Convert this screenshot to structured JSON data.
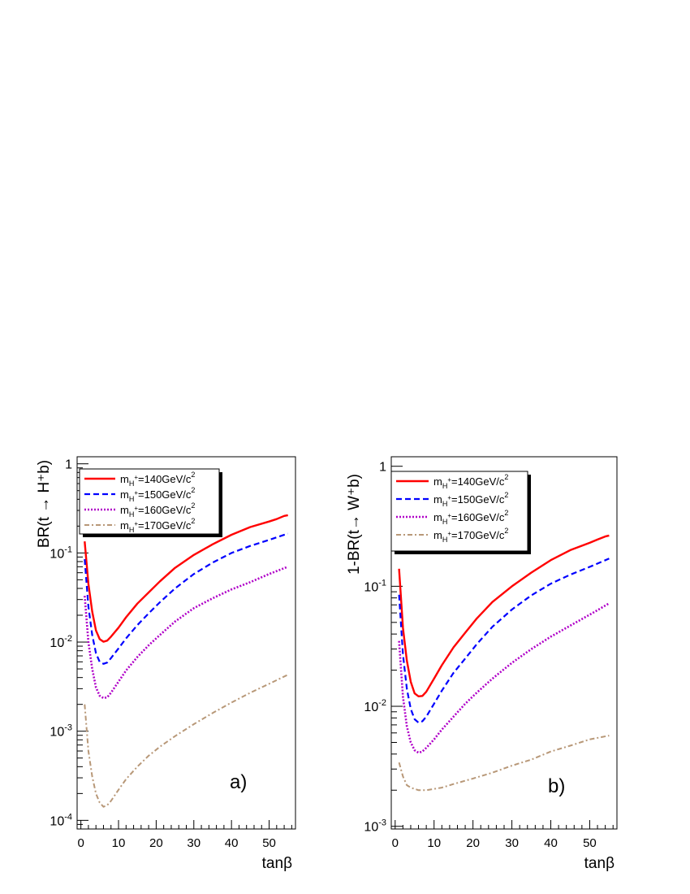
{
  "chart_data": [
    {
      "type": "line",
      "panel_label": "a)",
      "xlabel": "tanβ",
      "ylabel": "BR(t → H⁺b)",
      "xlim": [
        -1,
        57
      ],
      "ylim": [
        8e-05,
        1.2
      ],
      "yscale": "log",
      "grid": false,
      "legend_position": "top-left",
      "x_ticks": [
        0,
        10,
        20,
        30,
        40,
        50
      ],
      "y_ticks": [
        {
          "value": 0.0001,
          "base": "10",
          "exp": "-4"
        },
        {
          "value": 0.001,
          "base": "10",
          "exp": "-3"
        },
        {
          "value": 0.01,
          "base": "10",
          "exp": "-2"
        },
        {
          "value": 0.1,
          "base": "10",
          "exp": "-1"
        },
        {
          "value": 1,
          "base": "1",
          "exp": ""
        }
      ],
      "series": [
        {
          "name": "m_H+=140GeV/c^2",
          "legend": {
            "m": "m",
            "sub": "H",
            "sup": "+",
            "rest": "=140GeV/c",
            "sq": "2"
          },
          "color": "#ff0000",
          "dash": "",
          "width": 2.4,
          "x": [
            1,
            2,
            3,
            4,
            5,
            6,
            7,
            8,
            10,
            12,
            15,
            18,
            21,
            25,
            30,
            35,
            40,
            45,
            50,
            52,
            54,
            55
          ],
          "y": [
            0.135,
            0.045,
            0.022,
            0.0135,
            0.0108,
            0.0101,
            0.0104,
            0.0115,
            0.0145,
            0.019,
            0.027,
            0.036,
            0.048,
            0.068,
            0.095,
            0.125,
            0.16,
            0.195,
            0.225,
            0.24,
            0.26,
            0.265
          ]
        },
        {
          "name": "m_H+=150GeV/c^2",
          "legend": {
            "m": "m",
            "sub": "H",
            "sup": "+",
            "rest": "=150GeV/c",
            "sq": "2"
          },
          "color": "#0000ff",
          "dash": "7,4",
          "width": 2.2,
          "x": [
            1,
            2,
            3,
            4,
            5,
            6,
            7,
            8,
            10,
            12,
            15,
            18,
            21,
            25,
            30,
            35,
            40,
            45,
            50,
            55
          ],
          "y": [
            0.085,
            0.025,
            0.012,
            0.0075,
            0.006,
            0.0057,
            0.0059,
            0.0066,
            0.0085,
            0.011,
            0.0155,
            0.021,
            0.028,
            0.04,
            0.058,
            0.078,
            0.1,
            0.12,
            0.14,
            0.165
          ]
        },
        {
          "name": "m_H+=160GeV/c^2",
          "legend": {
            "m": "m",
            "sub": "H",
            "sup": "+",
            "rest": "=160GeV/c",
            "sq": "2"
          },
          "color": "#b000c8",
          "dash": "2,2",
          "width": 2.6,
          "x": [
            1,
            2,
            3,
            4,
            5,
            6,
            7,
            8,
            10,
            12,
            15,
            18,
            21,
            25,
            30,
            35,
            40,
            45,
            50,
            55
          ],
          "y": [
            0.033,
            0.01,
            0.005,
            0.0031,
            0.0025,
            0.00235,
            0.0024,
            0.0027,
            0.0036,
            0.0048,
            0.0068,
            0.0092,
            0.012,
            0.017,
            0.024,
            0.031,
            0.039,
            0.047,
            0.058,
            0.07
          ]
        },
        {
          "name": "m_H+=170GeV/c^2",
          "legend": {
            "m": "m",
            "sub": "H",
            "sup": "+",
            "rest": "=170GeV/c",
            "sq": "2"
          },
          "color": "#b89878",
          "dash": "6,3,2,3",
          "width": 2.0,
          "x": [
            1,
            2,
            3,
            4,
            5,
            6,
            7,
            8,
            10,
            12,
            15,
            18,
            21,
            25,
            30,
            35,
            40,
            45,
            50,
            55
          ],
          "y": [
            0.002,
            0.0006,
            0.00031,
            0.0002,
            0.000158,
            0.000142,
            0.000148,
            0.000165,
            0.00022,
            0.00029,
            0.0004,
            0.00053,
            0.00067,
            0.00088,
            0.0012,
            0.0016,
            0.0021,
            0.0027,
            0.0034,
            0.0043
          ]
        }
      ]
    },
    {
      "type": "line",
      "panel_label": "b)",
      "xlabel": "tanβ",
      "ylabel": "1-BR(t→ W⁺b)",
      "xlim": [
        -1,
        57
      ],
      "ylim": [
        0.00095,
        1.2
      ],
      "yscale": "log",
      "grid": false,
      "legend_position": "top-left",
      "x_ticks": [
        0,
        10,
        20,
        30,
        40,
        50
      ],
      "y_ticks": [
        {
          "value": 0.001,
          "base": "10",
          "exp": "-3"
        },
        {
          "value": 0.01,
          "base": "10",
          "exp": "-2"
        },
        {
          "value": 0.1,
          "base": "10",
          "exp": "-1"
        },
        {
          "value": 1,
          "base": "1",
          "exp": ""
        }
      ],
      "series": [
        {
          "name": "m_H+=140GeV/c^2",
          "legend": {
            "m": "m",
            "sub": "H",
            "sup": "+",
            "rest": "=140GeV/c",
            "sq": "2"
          },
          "color": "#ff0000",
          "dash": "",
          "width": 2.4,
          "x": [
            1,
            2,
            3,
            4,
            5,
            6,
            7,
            8,
            10,
            12,
            15,
            18,
            21,
            25,
            30,
            35,
            40,
            45,
            50,
            52,
            54,
            55
          ],
          "y": [
            0.14,
            0.045,
            0.024,
            0.016,
            0.0128,
            0.0121,
            0.0122,
            0.0132,
            0.017,
            0.022,
            0.031,
            0.041,
            0.054,
            0.074,
            0.1,
            0.13,
            0.165,
            0.2,
            0.23,
            0.245,
            0.26,
            0.265
          ]
        },
        {
          "name": "m_H+=150GeV/c^2",
          "legend": {
            "m": "m",
            "sub": "H",
            "sup": "+",
            "rest": "=150GeV/c",
            "sq": "2"
          },
          "color": "#0000ff",
          "dash": "7,4",
          "width": 2.2,
          "x": [
            1,
            2,
            3,
            4,
            5,
            6,
            7,
            8,
            10,
            12,
            15,
            18,
            21,
            25,
            30,
            35,
            40,
            45,
            50,
            55
          ],
          "y": [
            0.085,
            0.027,
            0.014,
            0.0095,
            0.0078,
            0.0073,
            0.0075,
            0.0082,
            0.0105,
            0.0135,
            0.019,
            0.025,
            0.033,
            0.046,
            0.064,
            0.084,
            0.105,
            0.125,
            0.145,
            0.17
          ]
        },
        {
          "name": "m_H+=160GeV/c^2",
          "legend": {
            "m": "m",
            "sub": "H",
            "sup": "+",
            "rest": "=160GeV/c",
            "sq": "2"
          },
          "color": "#b000c8",
          "dash": "2,2",
          "width": 2.6,
          "x": [
            1,
            2,
            3,
            4,
            5,
            6,
            7,
            8,
            10,
            12,
            15,
            18,
            21,
            25,
            30,
            35,
            40,
            45,
            50,
            55
          ],
          "y": [
            0.035,
            0.012,
            0.0068,
            0.005,
            0.0043,
            0.0041,
            0.0042,
            0.0045,
            0.0053,
            0.0064,
            0.0082,
            0.0105,
            0.013,
            0.017,
            0.023,
            0.03,
            0.038,
            0.047,
            0.058,
            0.072
          ]
        },
        {
          "name": "m_H+=170GeV/c^2",
          "legend": {
            "m": "m",
            "sub": "H",
            "sup": "+",
            "rest": "=170GeV/c",
            "sq": "2"
          },
          "color": "#b89878",
          "dash": "6,3,2,3",
          "width": 2.0,
          "x": [
            1,
            2,
            3,
            4,
            5,
            6,
            8,
            10,
            12,
            15,
            20,
            25,
            30,
            35,
            40,
            45,
            50,
            55
          ],
          "y": [
            0.0034,
            0.0026,
            0.0022,
            0.0021,
            0.00205,
            0.002,
            0.002,
            0.00205,
            0.0021,
            0.00225,
            0.0025,
            0.0028,
            0.0032,
            0.0036,
            0.0042,
            0.0047,
            0.0053,
            0.0057
          ]
        }
      ]
    }
  ]
}
